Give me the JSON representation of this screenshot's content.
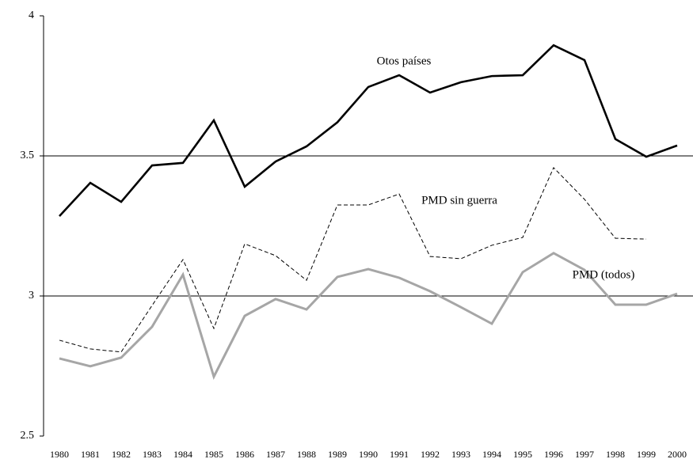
{
  "chart_data": {
    "type": "line",
    "categories": [
      "1980",
      "1981",
      "1982",
      "1983",
      "1984",
      "1985",
      "1986",
      "1987",
      "1988",
      "1989",
      "1990",
      "1991",
      "1992",
      "1993",
      "1994",
      "1995",
      "1996",
      "1997",
      "1998",
      "1999",
      "2000"
    ],
    "series": [
      {
        "name": "Otos países",
        "color": "#000000",
        "dashed": false,
        "width": 2.6,
        "values": [
          3.285,
          3.404,
          3.336,
          3.466,
          3.475,
          3.627,
          3.39,
          3.48,
          3.534,
          3.62,
          3.746,
          3.788,
          3.726,
          3.763,
          3.785,
          3.788,
          3.895,
          3.842,
          3.56,
          3.497,
          3.537
        ]
      },
      {
        "name": "PMD sin guerra",
        "color": "#000000",
        "dashed": true,
        "width": 1,
        "values": [
          2.842,
          2.811,
          2.8,
          2.966,
          3.13,
          2.884,
          3.186,
          3.144,
          3.056,
          3.325,
          3.325,
          3.364,
          3.141,
          3.133,
          3.181,
          3.209,
          3.458,
          3.345,
          3.206,
          3.203,
          null
        ]
      },
      {
        "name": "PMD (todos)",
        "color": "#a6a6a6",
        "dashed": false,
        "width": 3,
        "values": [
          2.777,
          2.749,
          2.78,
          2.89,
          3.076,
          2.712,
          2.929,
          2.989,
          2.952,
          3.068,
          3.096,
          3.065,
          3.017,
          2.96,
          2.901,
          3.085,
          3.153,
          3.093,
          2.969,
          2.969,
          3.008
        ]
      }
    ],
    "ylim": [
      2.5,
      4
    ],
    "yticks": [
      2.5,
      3,
      3.5,
      4
    ],
    "grid": true
  }
}
